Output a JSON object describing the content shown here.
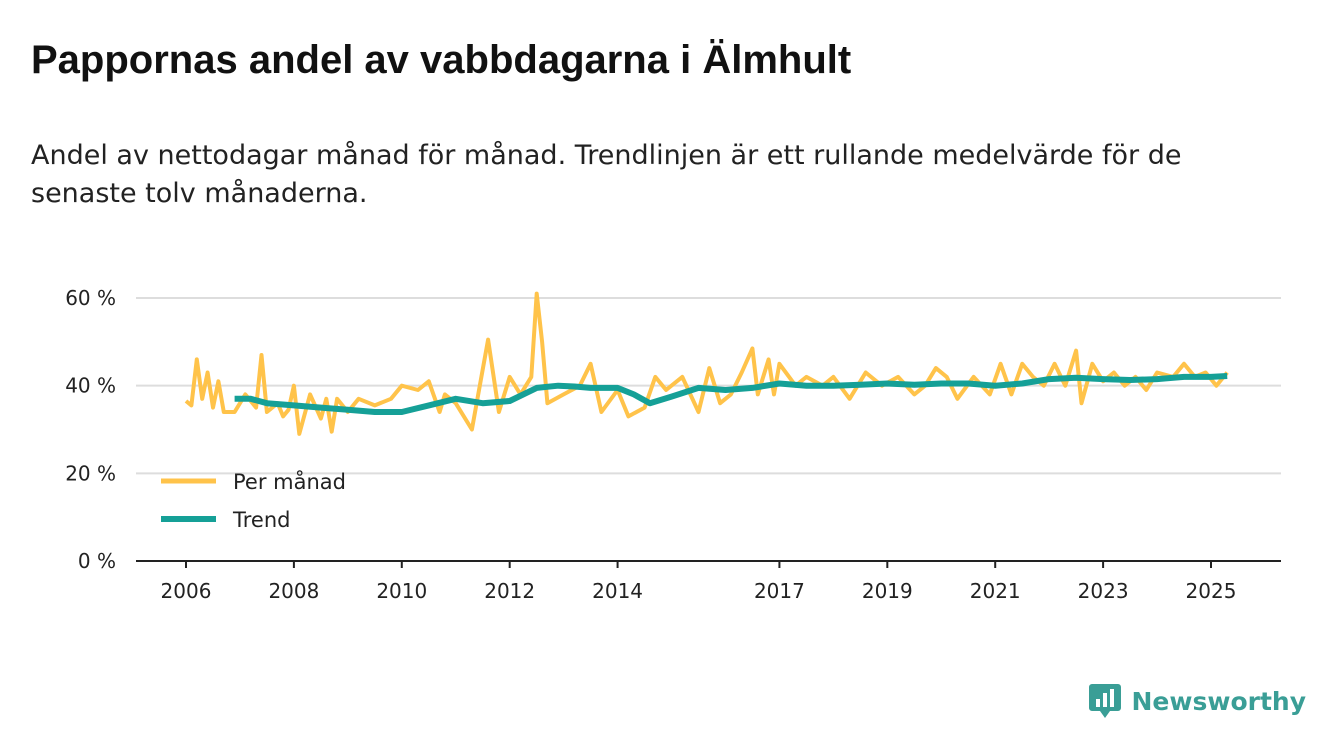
{
  "title": "Pappornas andel av vabbdagarna i Älmhult",
  "subtitle": "Andel av nettodagar månad för månad. Trendlinjen är ett rullande medelvärde för de senaste tolv månaderna.",
  "logo_text": "Newsworthy",
  "colors": {
    "monthly": "#ffc34a",
    "trend": "#15a097",
    "grid": "#dddddd",
    "axis": "#222222",
    "logo": "#3a9e96"
  },
  "chart_data": {
    "type": "line",
    "title": "Pappornas andel av vabbdagarna i Älmhult",
    "xlabel": "",
    "ylabel": "",
    "ylim": [
      0,
      60
    ],
    "xlim": [
      2006.0,
      2025.5
    ],
    "y_ticks": [
      0,
      20,
      40,
      60
    ],
    "y_tick_labels": [
      "0 %",
      "20 %",
      "40 %",
      "60 %"
    ],
    "x_ticks": [
      2006,
      2008,
      2010,
      2012,
      2014,
      2017,
      2019,
      2021,
      2023,
      2025
    ],
    "x_tick_labels": [
      "2006",
      "2008",
      "2010",
      "2012",
      "2014",
      "2017",
      "2019",
      "2021",
      "2023",
      "2025"
    ],
    "legend": {
      "position": "bottom-left",
      "entries": [
        "Per månad",
        "Trend"
      ]
    },
    "series": [
      {
        "name": "Per månad",
        "x": [
          2006.0,
          2006.1,
          2006.2,
          2006.3,
          2006.4,
          2006.5,
          2006.6,
          2006.7,
          2006.9,
          2007.1,
          2007.3,
          2007.4,
          2007.5,
          2007.7,
          2007.8,
          2007.9,
          2008.0,
          2008.1,
          2008.3,
          2008.5,
          2008.6,
          2008.7,
          2008.8,
          2009.0,
          2009.2,
          2009.5,
          2009.8,
          2010.0,
          2010.3,
          2010.5,
          2010.7,
          2010.8,
          2011.0,
          2011.3,
          2011.6,
          2011.8,
          2012.0,
          2012.2,
          2012.4,
          2012.5,
          2012.6,
          2012.7,
          2013.0,
          2013.3,
          2013.5,
          2013.7,
          2014.0,
          2014.2,
          2014.5,
          2014.7,
          2014.9,
          2015.2,
          2015.5,
          2015.7,
          2015.9,
          2016.1,
          2016.3,
          2016.5,
          2016.6,
          2016.8,
          2016.9,
          2017.0,
          2017.3,
          2017.5,
          2017.8,
          2018.0,
          2018.3,
          2018.6,
          2018.9,
          2019.2,
          2019.5,
          2019.7,
          2019.9,
          2020.1,
          2020.3,
          2020.6,
          2020.9,
          2021.1,
          2021.3,
          2021.5,
          2021.7,
          2021.9,
          2022.1,
          2022.3,
          2022.5,
          2022.6,
          2022.8,
          2023.0,
          2023.2,
          2023.4,
          2023.6,
          2023.8,
          2024.0,
          2024.3,
          2024.5,
          2024.7,
          2024.9,
          2025.1,
          2025.3
        ],
        "values": [
          36.5,
          35.5,
          46,
          37,
          43,
          35,
          41,
          34,
          34,
          38,
          35,
          47,
          34,
          36,
          33,
          34.5,
          40,
          29,
          38,
          32.5,
          37,
          29.5,
          37,
          34,
          37,
          35.5,
          37,
          40,
          39,
          41,
          34,
          38,
          36,
          30,
          50.5,
          34,
          42,
          38,
          42,
          61,
          50,
          36,
          38,
          40,
          45,
          34,
          39,
          33,
          35,
          42,
          39,
          42,
          34,
          44,
          36,
          38,
          43,
          48.5,
          38,
          46,
          38,
          45,
          40,
          42,
          40,
          42,
          37,
          43,
          40,
          42,
          38,
          40,
          44,
          42,
          37,
          42,
          38,
          45,
          38,
          45,
          42,
          40,
          45,
          40,
          48,
          36,
          45,
          41,
          43,
          40,
          42,
          39,
          43,
          42,
          45,
          42,
          43,
          40,
          43
        ]
      },
      {
        "name": "Trend",
        "x": [
          2006.9,
          2007.2,
          2007.5,
          2008.0,
          2008.5,
          2009.0,
          2009.5,
          2010.0,
          2010.5,
          2011.0,
          2011.5,
          2012.0,
          2012.5,
          2012.9,
          2013.2,
          2013.5,
          2014.0,
          2014.3,
          2014.6,
          2015.0,
          2015.5,
          2016.0,
          2016.5,
          2017.0,
          2017.5,
          2018.0,
          2018.5,
          2019.0,
          2019.5,
          2020.0,
          2020.5,
          2021.0,
          2021.5,
          2022.0,
          2022.5,
          2023.0,
          2023.5,
          2024.0,
          2024.5,
          2025.0,
          2025.3
        ],
        "values": [
          37,
          37,
          36,
          35.5,
          35,
          34.5,
          34,
          34,
          35.5,
          37,
          36,
          36.5,
          39.5,
          40,
          39.8,
          39.5,
          39.5,
          38,
          36,
          37.5,
          39.5,
          39,
          39.5,
          40.5,
          40,
          40,
          40.2,
          40.5,
          40.2,
          40.5,
          40.5,
          40,
          40.5,
          41.5,
          41.8,
          41.5,
          41.3,
          41.5,
          42,
          42,
          42.2
        ]
      }
    ]
  }
}
